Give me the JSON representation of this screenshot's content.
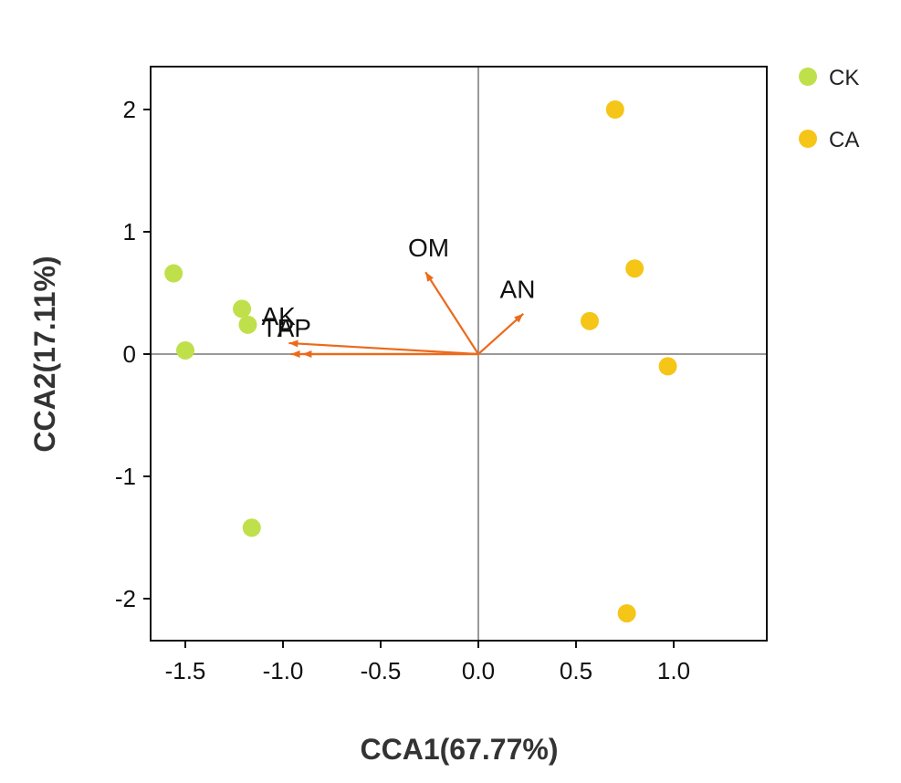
{
  "chart_data": {
    "type": "scatter",
    "xlabel": "CCA1(67.77%)",
    "ylabel": "CCA2(17.11%)",
    "xlim": [
      -1.7,
      1.5
    ],
    "ylim": [
      -2.35,
      2.35
    ],
    "x_ticks": [
      {
        "value": -1.5,
        "label": "-1.5"
      },
      {
        "value": -1.0,
        "label": "-1.0"
      },
      {
        "value": -0.5,
        "label": "-0.5"
      },
      {
        "value": 0.0,
        "label": "0.0"
      },
      {
        "value": 0.5,
        "label": "0.5"
      },
      {
        "value": 1.0,
        "label": "1.0"
      }
    ],
    "y_ticks": [
      {
        "value": 2,
        "label": "2"
      },
      {
        "value": 1,
        "label": "1"
      },
      {
        "value": 0,
        "label": "0"
      },
      {
        "value": -1,
        "label": "-1"
      },
      {
        "value": -2,
        "label": "-2"
      }
    ],
    "grid": false,
    "reference_lines": {
      "x": 0,
      "y": 0
    },
    "legend_position": "top-right, outside plot",
    "series": [
      {
        "name": "CK",
        "color": "#bfe04a",
        "points": [
          {
            "x": -1.56,
            "y": 0.66
          },
          {
            "x": -1.21,
            "y": 0.37
          },
          {
            "x": -1.18,
            "y": 0.24
          },
          {
            "x": -1.5,
            "y": 0.03
          },
          {
            "x": -1.16,
            "y": -1.42
          }
        ]
      },
      {
        "name": "CA",
        "color": "#f5c518",
        "points": [
          {
            "x": 0.7,
            "y": 2.0
          },
          {
            "x": 0.8,
            "y": 0.7
          },
          {
            "x": 0.57,
            "y": 0.27
          },
          {
            "x": 0.97,
            "y": -0.1
          },
          {
            "x": 0.76,
            "y": -2.12
          }
        ]
      }
    ],
    "arrows": {
      "color": "#ec6a1a",
      "items": [
        {
          "label": "OM",
          "x": -0.27,
          "y": 0.67,
          "label_x": -0.36,
          "label_y": 0.8
        },
        {
          "label": "AN",
          "x": 0.23,
          "y": 0.33,
          "label_x": 0.11,
          "label_y": 0.46
        },
        {
          "label": "AK",
          "x": -0.97,
          "y": 0.09,
          "label_x": -1.11,
          "label_y": 0.24
        },
        {
          "label": "TP",
          "x": -0.96,
          "y": 0.0,
          "label_x": -1.11,
          "label_y": 0.14
        },
        {
          "label": "AP",
          "x": -0.9,
          "y": 0.0,
          "label_x": -1.03,
          "label_y": 0.14
        }
      ]
    }
  }
}
